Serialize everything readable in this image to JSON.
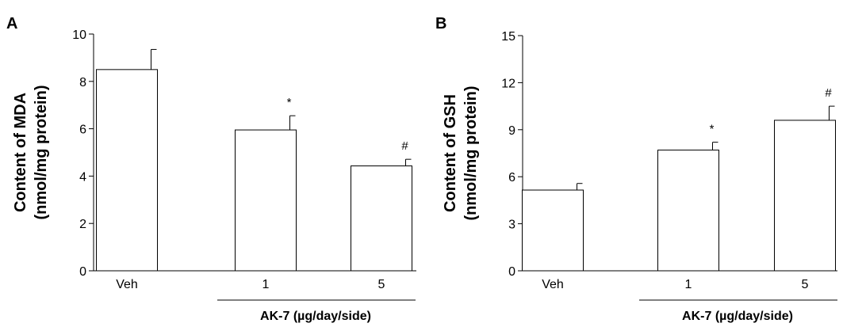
{
  "chart_data": [
    {
      "panel_label": "A",
      "type": "bar",
      "categories": [
        "Veh",
        "1",
        "5"
      ],
      "values": [
        8.5,
        5.95,
        4.43
      ],
      "errors": [
        0.85,
        0.6,
        0.28
      ],
      "significance": [
        "",
        "*",
        "#"
      ],
      "ylabel_line1": "Content of MDA",
      "ylabel_line2": "(nmol/mg protein)",
      "ylim": [
        0,
        10
      ],
      "yticks": [
        0,
        2,
        4,
        6,
        8,
        10
      ],
      "group_label": "AK-7 (µg/day/side)",
      "grid": false,
      "bar_color": "#ffffff",
      "edge_color": "#000000"
    },
    {
      "panel_label": "B",
      "type": "bar",
      "categories": [
        "Veh",
        "1",
        "5"
      ],
      "values": [
        5.15,
        7.7,
        9.6
      ],
      "errors": [
        0.42,
        0.5,
        0.9
      ],
      "significance": [
        "",
        "*",
        "#"
      ],
      "ylabel_line1": "Content of GSH",
      "ylabel_line2": "(nmol/mg protein)",
      "ylim": [
        0,
        15
      ],
      "yticks": [
        0,
        3,
        6,
        9,
        12,
        15
      ],
      "group_label": "AK-7 (µg/day/side)",
      "grid": false,
      "bar_color": "#ffffff",
      "edge_color": "#000000"
    }
  ]
}
